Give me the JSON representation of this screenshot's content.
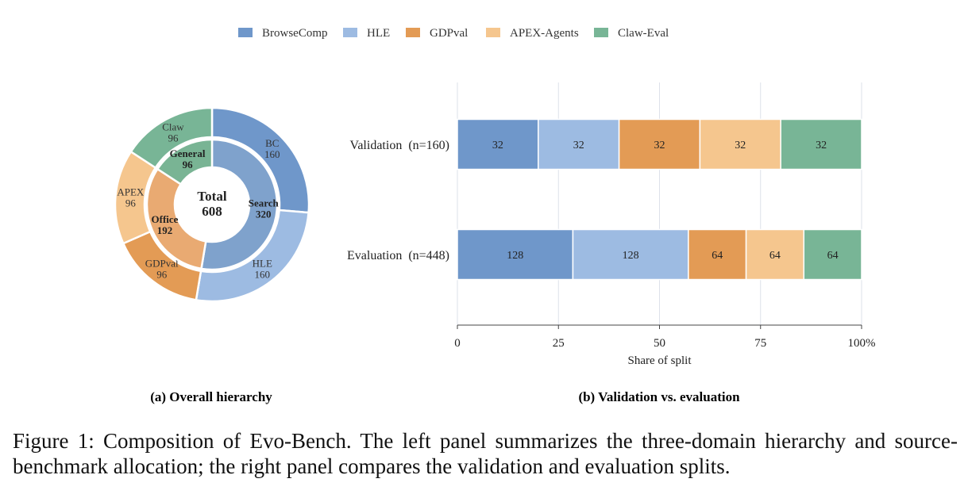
{
  "legend": {
    "items": [
      {
        "label": "BrowseComp",
        "color": "#6f97ca"
      },
      {
        "label": "HLE",
        "color": "#9dbbe2"
      },
      {
        "label": "GDPval",
        "color": "#e39b55"
      },
      {
        "label": "APEX-Agents",
        "color": "#f5c68e"
      },
      {
        "label": "Claw-Eval",
        "color": "#78b596"
      }
    ]
  },
  "chart_data": [
    {
      "type": "pie",
      "subtitle": "(a) Overall hierarchy",
      "center_label": {
        "title": "Total",
        "value": "608"
      },
      "inner_ring": [
        {
          "label": "Search",
          "value": 320,
          "color": "#7fa2cc"
        },
        {
          "label": "Office",
          "value": 192,
          "color": "#e9aa72"
        },
        {
          "label": "General",
          "value": 96,
          "color": "#79b494"
        }
      ],
      "outer_ring": [
        {
          "label": "BC",
          "value": 160,
          "color": "#6f97ca"
        },
        {
          "label": "HLE",
          "value": 160,
          "color": "#9dbbe2"
        },
        {
          "label": "GDPval",
          "value": 96,
          "color": "#e39b55"
        },
        {
          "label": "APEX",
          "value": 96,
          "color": "#f5c68e"
        },
        {
          "label": "Claw",
          "value": 96,
          "color": "#78b596"
        }
      ]
    },
    {
      "type": "bar",
      "orientation": "horizontal",
      "stacked": "percent",
      "subtitle": "(b) Validation vs. evaluation",
      "categories": [
        "Validation  (n=160)",
        "Evaluation  (n=448)"
      ],
      "totals": [
        160,
        448
      ],
      "series": [
        {
          "name": "BrowseComp",
          "values": [
            32,
            128
          ],
          "color": "#6f97ca"
        },
        {
          "name": "HLE",
          "values": [
            32,
            128
          ],
          "color": "#9dbbe2"
        },
        {
          "name": "GDPval",
          "values": [
            32,
            64
          ],
          "color": "#e39b55"
        },
        {
          "name": "APEX-Agents",
          "values": [
            32,
            64
          ],
          "color": "#f5c68e"
        },
        {
          "name": "Claw-Eval",
          "values": [
            32,
            64
          ],
          "color": "#78b596"
        }
      ],
      "xlabel": "Share of split",
      "xlim": [
        0,
        100
      ],
      "xticks": [
        0,
        25,
        50,
        75,
        100
      ],
      "xtick_labels": [
        "0",
        "25",
        "50",
        "75",
        "100%"
      ],
      "grid": "vertical"
    }
  ],
  "caption": "Figure 1: Composition of Evo-Bench. The left panel summarizes the three-domain hierarchy and source-benchmark allocation; the right panel compares the validation and evaluation splits."
}
